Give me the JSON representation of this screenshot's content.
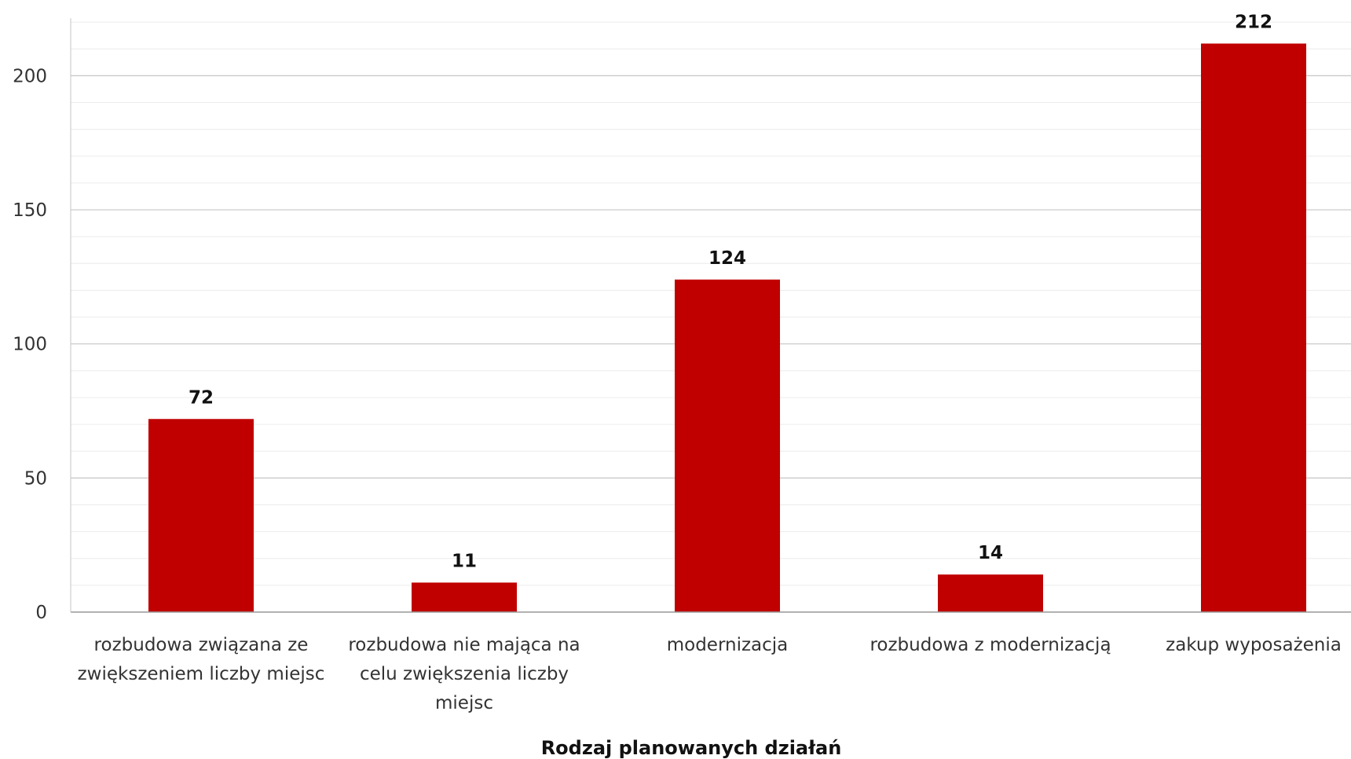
{
  "chart_data": {
    "type": "bar",
    "title": "",
    "xlabel": "Rodzaj planowanych działań",
    "ylabel": "",
    "categories": [
      [
        "rozbudowa związana ze",
        "zwiększeniem liczby miejsc"
      ],
      [
        "rozbudowa nie mająca na",
        "celu zwiększenia liczby",
        "miejsc"
      ],
      [
        "modernizacja"
      ],
      [
        "rozbudowa z modernizacją"
      ],
      [
        "zakup wyposażenia"
      ]
    ],
    "values": [
      72,
      11,
      124,
      14,
      212
    ],
    "ylim": [
      0,
      220
    ],
    "yticks": [
      0,
      50,
      100,
      150,
      200
    ],
    "grid": true,
    "legend": "none",
    "bar_color": "#c00000",
    "data_labels": true
  }
}
